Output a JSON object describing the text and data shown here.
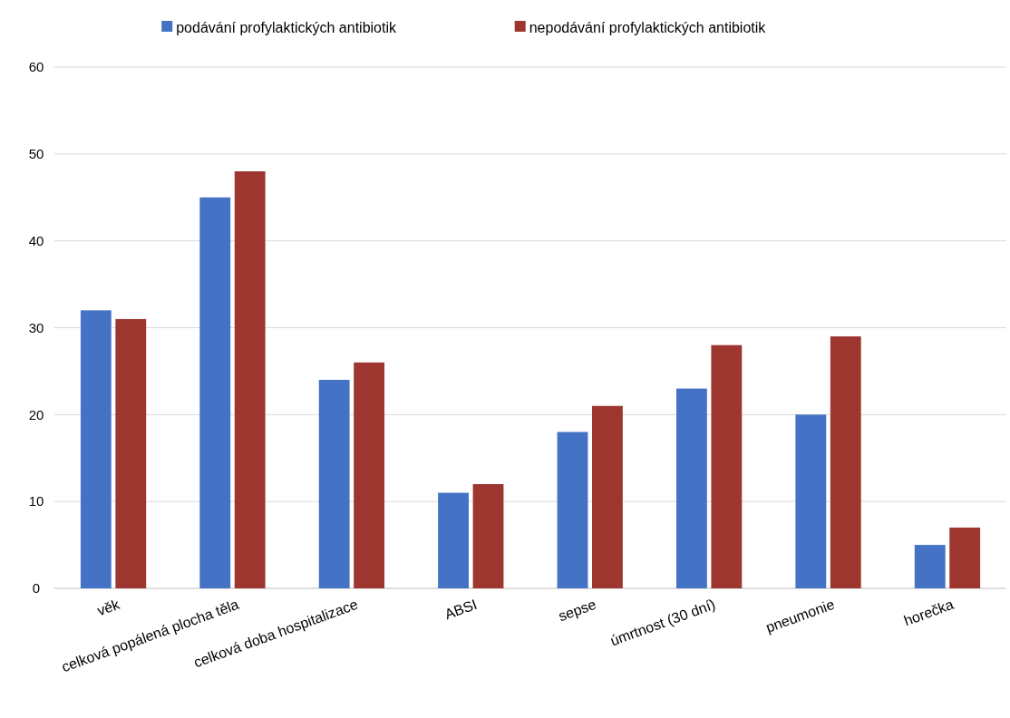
{
  "chart_data": {
    "type": "bar",
    "categories": [
      "věk",
      "celková popálená plocha těla",
      "celková doba hospitalizace",
      "ABSI",
      "sepse",
      "úmrtnost (30 dní)",
      "pneumonie",
      "horečka"
    ],
    "series": [
      {
        "name": "podávání profylaktických antibiotik",
        "color": "#4472c4",
        "values": [
          32,
          45,
          24,
          11,
          18,
          23,
          20,
          5
        ]
      },
      {
        "name": "nepodávání profylaktických antibiotik",
        "color": "#9e3630",
        "values": [
          31,
          48,
          26,
          12,
          21,
          28,
          29,
          7
        ]
      }
    ],
    "ylim": [
      0,
      60
    ],
    "yticks": [
      0,
      10,
      20,
      30,
      40,
      50,
      60
    ],
    "grid": "y",
    "legend": "top"
  }
}
